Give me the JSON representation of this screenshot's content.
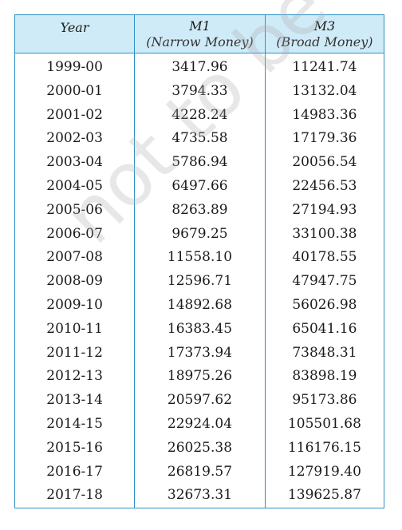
{
  "table": {
    "headers": {
      "year": "Year",
      "m1_title": "M1",
      "m1_sub": "(Narrow Money)",
      "m3_title": "M3",
      "m3_sub": "(Broad Money)"
    },
    "rows": [
      {
        "year": "1999-00",
        "m1": "3417.96",
        "m3": "11241.74"
      },
      {
        "year": "2000-01",
        "m1": "3794.33",
        "m3": "13132.04"
      },
      {
        "year": "2001-02",
        "m1": "4228.24",
        "m3": "14983.36"
      },
      {
        "year": "2002-03",
        "m1": "4735.58",
        "m3": "17179.36"
      },
      {
        "year": "2003-04",
        "m1": "5786.94",
        "m3": "20056.54"
      },
      {
        "year": "2004-05",
        "m1": "6497.66",
        "m3": "22456.53"
      },
      {
        "year": "2005-06",
        "m1": "8263.89",
        "m3": "27194.93"
      },
      {
        "year": "2006-07",
        "m1": "9679.25",
        "m3": "33100.38"
      },
      {
        "year": "2007-08",
        "m1": "11558.10",
        "m3": "40178.55"
      },
      {
        "year": "2008-09",
        "m1": "12596.71",
        "m3": "47947.75"
      },
      {
        "year": "2009-10",
        "m1": "14892.68",
        "m3": "56026.98"
      },
      {
        "year": "2010-11",
        "m1": "16383.45",
        "m3": "65041.16"
      },
      {
        "year": "2011-12",
        "m1": "17373.94",
        "m3": "73848.31"
      },
      {
        "year": "2012-13",
        "m1": "18975.26",
        "m3": "83898.19"
      },
      {
        "year": "2013-14",
        "m1": "20597.62",
        "m3": "95173.86"
      },
      {
        "year": "2014-15",
        "m1": "22924.04",
        "m3": "105501.68"
      },
      {
        "year": "2015-16",
        "m1": "26025.38",
        "m3": "116176.15"
      },
      {
        "year": "2016-17",
        "m1": "26819.57",
        "m3": "127919.40"
      },
      {
        "year": "2017-18",
        "m1": "32673.31",
        "m3": "139625.87"
      }
    ]
  },
  "watermark": {
    "text": "not to be republished",
    "color": "#aaaaaa"
  },
  "colors": {
    "border": "#2a90c8",
    "header_bg": "#d0ebf8"
  }
}
